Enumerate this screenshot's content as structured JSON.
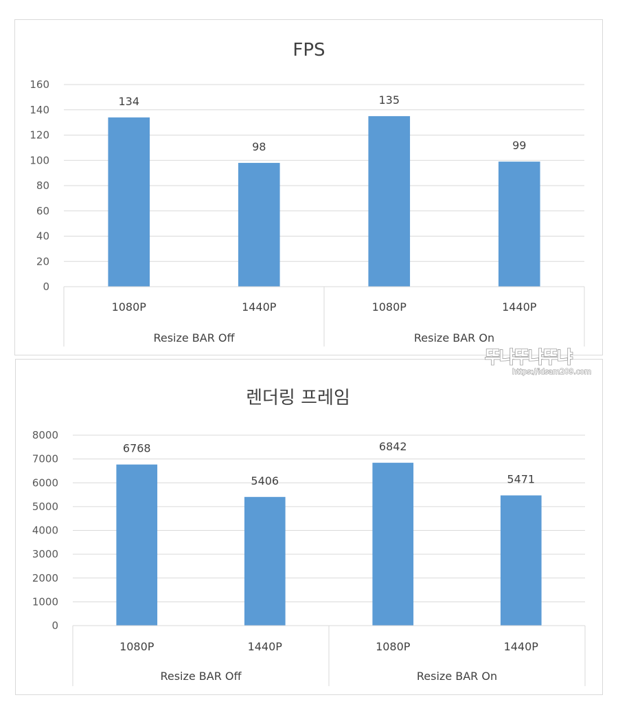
{
  "watermark": {
    "brand": "뚜냐뚜냐뚜냐",
    "url": "https://idsam209.com"
  },
  "chart_data": [
    {
      "type": "bar",
      "title": "FPS",
      "groups": [
        "Resize BAR Off",
        "Resize BAR On"
      ],
      "categories": [
        "1080P",
        "1440P",
        "1080P",
        "1440P"
      ],
      "values": [
        134,
        98,
        135,
        99
      ],
      "ylim": [
        0,
        160
      ],
      "yticks": [
        0,
        20,
        40,
        60,
        80,
        100,
        120,
        140,
        160
      ],
      "xlabel": "",
      "ylabel": "",
      "grid": true,
      "legend": "none",
      "color": "#5b9bd5"
    },
    {
      "type": "bar",
      "title": "렌더링 프레임",
      "groups": [
        "Resize BAR Off",
        "Resize BAR On"
      ],
      "categories": [
        "1080P",
        "1440P",
        "1080P",
        "1440P"
      ],
      "values": [
        6768,
        5406,
        6842,
        5471
      ],
      "ylim": [
        0,
        8000
      ],
      "yticks": [
        0,
        1000,
        2000,
        3000,
        4000,
        5000,
        6000,
        7000,
        8000
      ],
      "xlabel": "",
      "ylabel": "",
      "grid": true,
      "legend": "none",
      "color": "#5b9bd5"
    }
  ]
}
